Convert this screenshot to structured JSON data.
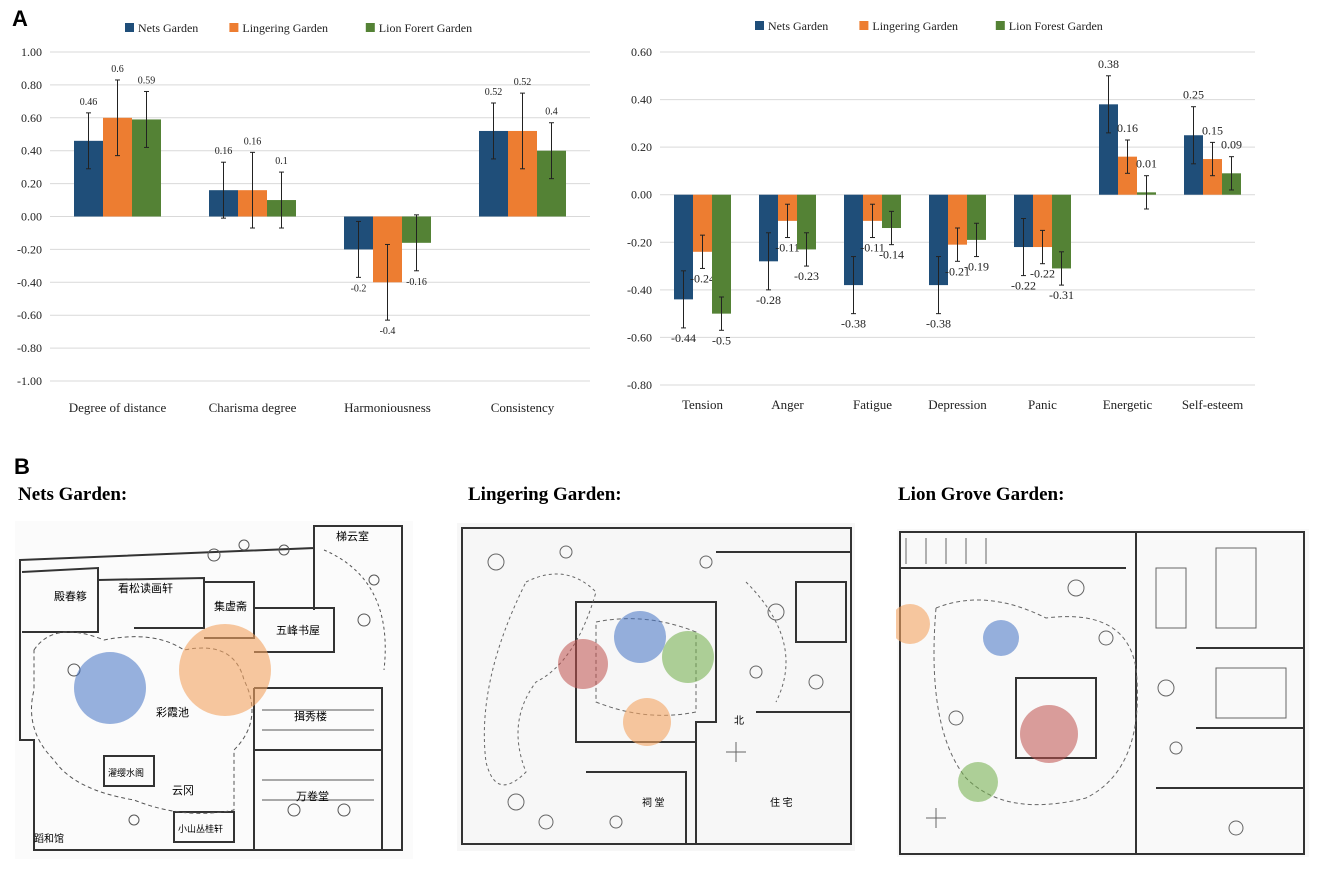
{
  "figure": {
    "panel_a_letter": "A",
    "panel_b_letter": "B"
  },
  "colors": {
    "nets": "#1F4E79",
    "lingering": "#ED7D31",
    "lion": "#548235",
    "grid": "#d9d9d9",
    "red_zone": "#c0504d"
  },
  "chart_data": [
    {
      "type": "bar",
      "id": "perception",
      "title": "",
      "categories": [
        "Degree of distance",
        "Charisma degree",
        "Harmoniousness",
        "Consistency"
      ],
      "series": [
        {
          "name": "Nets Garden",
          "values": [
            0.46,
            0.16,
            -0.2,
            0.52
          ],
          "errors": [
            0.17,
            0.17,
            0.17,
            0.17
          ]
        },
        {
          "name": "Lingering Garden",
          "values": [
            0.6,
            0.16,
            -0.4,
            0.52
          ],
          "errors": [
            0.23,
            0.23,
            0.23,
            0.23
          ]
        },
        {
          "name": "Lion Forert Garden",
          "values": [
            0.59,
            0.1,
            -0.16,
            0.4
          ],
          "errors": [
            0.17,
            0.17,
            0.17,
            0.17
          ]
        }
      ],
      "data_labels": [
        [
          "0.46",
          "0.16",
          "-0.2",
          "0.52"
        ],
        [
          "0.6",
          "0.16",
          "-0.4",
          "0.52"
        ],
        [
          "0.59",
          "0.1",
          "-0.16",
          "0.4"
        ]
      ],
      "yticks": [
        "1.00",
        "0.80",
        "0.60",
        "0.40",
        "0.20",
        "0.00",
        "-0.20",
        "-0.40",
        "-0.60",
        "-0.80",
        "-1.00"
      ],
      "ylim": [
        -1.0,
        1.0
      ],
      "xlabel": "",
      "ylabel": "",
      "legend": "top-center",
      "grid": true
    },
    {
      "type": "bar",
      "id": "mood",
      "title": "",
      "categories": [
        "Tension",
        "Anger",
        "Fatigue",
        "Depression",
        "Panic",
        "Energetic",
        "Self-esteem"
      ],
      "series": [
        {
          "name": "Nets Garden",
          "values": [
            -0.44,
            -0.28,
            -0.38,
            -0.38,
            -0.22,
            0.38,
            0.25
          ],
          "errors": [
            0.12,
            0.12,
            0.12,
            0.12,
            0.12,
            0.12,
            0.12
          ]
        },
        {
          "name": "Lingering Garden",
          "values": [
            -0.24,
            -0.11,
            -0.11,
            -0.21,
            -0.22,
            0.16,
            0.15
          ],
          "errors": [
            0.07,
            0.07,
            0.07,
            0.07,
            0.07,
            0.07,
            0.07
          ]
        },
        {
          "name": "Lion Forest Garden",
          "values": [
            -0.5,
            -0.23,
            -0.14,
            -0.19,
            -0.31,
            0.01,
            0.09
          ],
          "errors": [
            0.07,
            0.07,
            0.07,
            0.07,
            0.07,
            0.07,
            0.07
          ]
        }
      ],
      "data_labels": [
        [
          "-0.44",
          "-0.28",
          "-0.38",
          "-0.38",
          "-0.22",
          "0.38",
          "0.25"
        ],
        [
          "-0.24",
          "-0.11",
          "-0.11",
          "-0.21",
          "-0.22",
          "0.16",
          "0.15"
        ],
        [
          "-0.5",
          "-0.23",
          "-0.14",
          "-0.19",
          "-0.31",
          "0.01",
          "0.09"
        ]
      ],
      "yticks": [
        "0.60",
        "0.40",
        "0.20",
        "0.00",
        "-0.20",
        "-0.40",
        "-0.60",
        "-0.80"
      ],
      "ylim": [
        -0.8,
        0.6
      ],
      "xlabel": "",
      "ylabel": "",
      "legend": "top-center",
      "grid": true
    }
  ],
  "maps": [
    {
      "title": "Nets Garden:",
      "labels": [
        "梯云室",
        "殿春簃",
        "看松读画轩",
        "集虚斋",
        "五峰书屋",
        "彩霞池",
        "揖秀楼",
        "万卷堂",
        "云冈",
        "濯缨水阁",
        "小山丛桂轩",
        "蹈和馆"
      ]
    },
    {
      "title": "Lingering Garden:",
      "labels": [
        "北",
        "祠 堂",
        "住 宅"
      ]
    },
    {
      "title": "Lion Grove Garden:",
      "labels": []
    }
  ]
}
